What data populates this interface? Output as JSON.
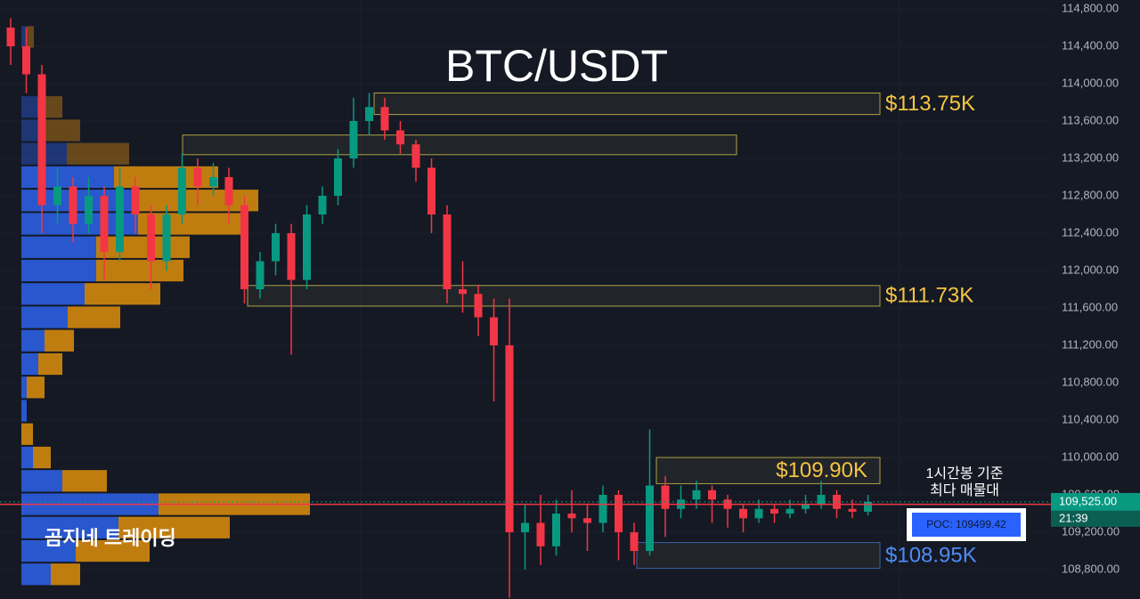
{
  "chart_data": {
    "type": "candlestick",
    "title": "BTC/USDT",
    "ylim": [
      108486,
      114895
    ],
    "yticks": [
      {
        "value": 108800,
        "label": "108,800.00"
      },
      {
        "value": 109200,
        "label": "109,200.00"
      },
      {
        "value": 109600,
        "label": "109,600.00"
      },
      {
        "value": 110000,
        "label": "110,000.00"
      },
      {
        "value": 110400,
        "label": "110,400.00"
      },
      {
        "value": 110800,
        "label": "110,800.00"
      },
      {
        "value": 111200,
        "label": "111,200.00"
      },
      {
        "value": 111600,
        "label": "111,600.00"
      },
      {
        "value": 112000,
        "label": "112,000.00"
      },
      {
        "value": 112400,
        "label": "112,400.00"
      },
      {
        "value": 112800,
        "label": "112,800.00"
      },
      {
        "value": 113200,
        "label": "113,200.00"
      },
      {
        "value": 113600,
        "label": "113,600.00"
      },
      {
        "value": 114000,
        "label": "114,000.00"
      },
      {
        "value": 114400,
        "label": "114,400.00"
      },
      {
        "value": 114800,
        "label": "114,800.00"
      }
    ],
    "up_color": "#089981",
    "down_color": "#f23645",
    "open": [
      114600,
      114400,
      114100,
      112700,
      112900,
      112500,
      112800,
      112200,
      112900,
      112600,
      112100,
      112600,
      113100,
      112900,
      113000,
      112700,
      111800,
      112100,
      112400,
      111900,
      112600,
      112800,
      113200,
      113600,
      113750,
      113500,
      113350,
      113100,
      112600,
      111800,
      111750,
      111500,
      111200,
      109200,
      109300,
      109050,
      109400,
      109350,
      109300,
      109600,
      109200,
      109000,
      109700,
      109450,
      109550,
      109650,
      109550,
      109450,
      109350,
      109450,
      109400,
      109450,
      109500,
      109600,
      109450,
      109420
    ],
    "high": [
      114700,
      114600,
      114200,
      113100,
      113000,
      113000,
      112900,
      113100,
      113000,
      112700,
      112700,
      113250,
      113200,
      113150,
      113100,
      112800,
      112200,
      112500,
      112500,
      112700,
      112900,
      113300,
      113850,
      113900,
      113850,
      113600,
      113400,
      113200,
      112700,
      112100,
      111850,
      111700,
      111700,
      109500,
      109600,
      109550,
      109650,
      109500,
      109700,
      109650,
      109300,
      110300,
      109800,
      109700,
      109750,
      109700,
      109600,
      109500,
      109550,
      109500,
      109550,
      109600,
      109750,
      109650,
      109550,
      109600
    ],
    "low": [
      114200,
      113900,
      112400,
      112500,
      112300,
      112400,
      111900,
      112100,
      112400,
      111800,
      112000,
      112500,
      112700,
      112800,
      112500,
      111650,
      111700,
      111950,
      111100,
      111800,
      112500,
      112700,
      113100,
      113450,
      113400,
      113250,
      112950,
      112400,
      111650,
      111550,
      111300,
      110600,
      108500,
      108800,
      108850,
      108950,
      109200,
      109000,
      109200,
      108900,
      108850,
      108950,
      109150,
      109350,
      109450,
      109300,
      109250,
      109200,
      109300,
      109300,
      109350,
      109400,
      109450,
      109350,
      109350,
      109380
    ],
    "close": [
      114400,
      114100,
      112700,
      112900,
      112500,
      112800,
      112200,
      112900,
      112600,
      112100,
      112600,
      113100,
      112900,
      113000,
      112700,
      111800,
      112100,
      112400,
      111900,
      112600,
      112800,
      113200,
      113600,
      113750,
      113500,
      113350,
      113100,
      112600,
      111800,
      111750,
      111500,
      111200,
      109200,
      109300,
      109050,
      109400,
      109350,
      109300,
      109600,
      109200,
      109000,
      109700,
      109450,
      109550,
      109650,
      109550,
      109450,
      109350,
      109450,
      109400,
      109450,
      109500,
      109600,
      109450,
      109420,
      109525
    ],
    "volume_profile": {
      "levels": [
        114500,
        113750,
        113500,
        113250,
        113000,
        112750,
        112500,
        112250,
        112000,
        111750,
        111500,
        111250,
        111000,
        110750,
        110500,
        110250,
        110000,
        109750,
        109500,
        109250,
        109000,
        108750
      ],
      "bin_size": 250,
      "buy_volume": [
        6,
        18,
        26,
        51,
        104,
        131,
        131,
        84,
        84,
        71,
        52,
        26,
        19,
        6,
        6,
        0,
        13,
        46,
        154,
        109,
        61,
        33
      ],
      "sell_volume": [
        8,
        28,
        40,
        70,
        117,
        135,
        123,
        105,
        98,
        85,
        59,
        33,
        27,
        20,
        0,
        13,
        20,
        50,
        170,
        125,
        83,
        33
      ],
      "buy_color": "#2a5bd7",
      "sell_color": "#c9830f"
    },
    "zones": [
      {
        "low": 113670,
        "high": 113900,
        "label": "$113.75K"
      },
      {
        "low": 113240,
        "high": 113450
      },
      {
        "low": 111620,
        "high": 111840,
        "label": "$111.73K"
      },
      {
        "low": 109720,
        "high": 110000,
        "label": "$109.90K"
      },
      {
        "low": 108815,
        "high": 109090,
        "label": "$108.95K"
      }
    ],
    "current_price": {
      "value": 109525,
      "label": "109,525.00"
    },
    "countdown": "21:39",
    "poc": {
      "value": 109499.42,
      "label": "POC: 109499.42"
    },
    "annotation": [
      "1시간봉 기준",
      "최다 매물대"
    ],
    "watermark": "곰지네 트레이딩"
  }
}
